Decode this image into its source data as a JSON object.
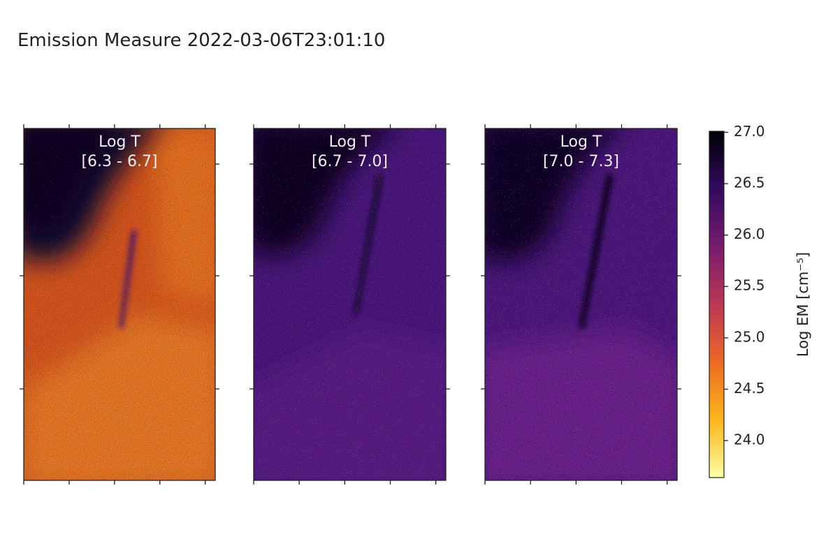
{
  "chart_data": {
    "type": "heatmap",
    "title": "Emission Measure 2022-03-06T23:01:10",
    "panels": [
      {
        "title": [
          "Log T",
          "[6.3 - 6.7]"
        ]
      },
      {
        "title": [
          "Log T",
          "[6.7 - 7.0]"
        ]
      },
      {
        "title": [
          "Log T",
          "[7.0 - 7.3]"
        ]
      }
    ],
    "colorbar": {
      "label": "Log EM [cm⁻⁵]",
      "colormap": [
        "#000004",
        "#320a5e",
        "#781c6d",
        "#bc3754",
        "#ed6925",
        "#fbb61a",
        "#fcffa4"
      ],
      "ylim": [
        23.64,
        27.01
      ],
      "yticks": [
        {
          "value": 24,
          "label": "24.0"
        },
        24.5,
        {
          "value": 25,
          "label": "25.0"
        },
        25.5,
        {
          "value": 26,
          "label": "26.0"
        },
        26.5,
        {
          "value": 27,
          "label": "27.0"
        }
      ]
    }
  }
}
